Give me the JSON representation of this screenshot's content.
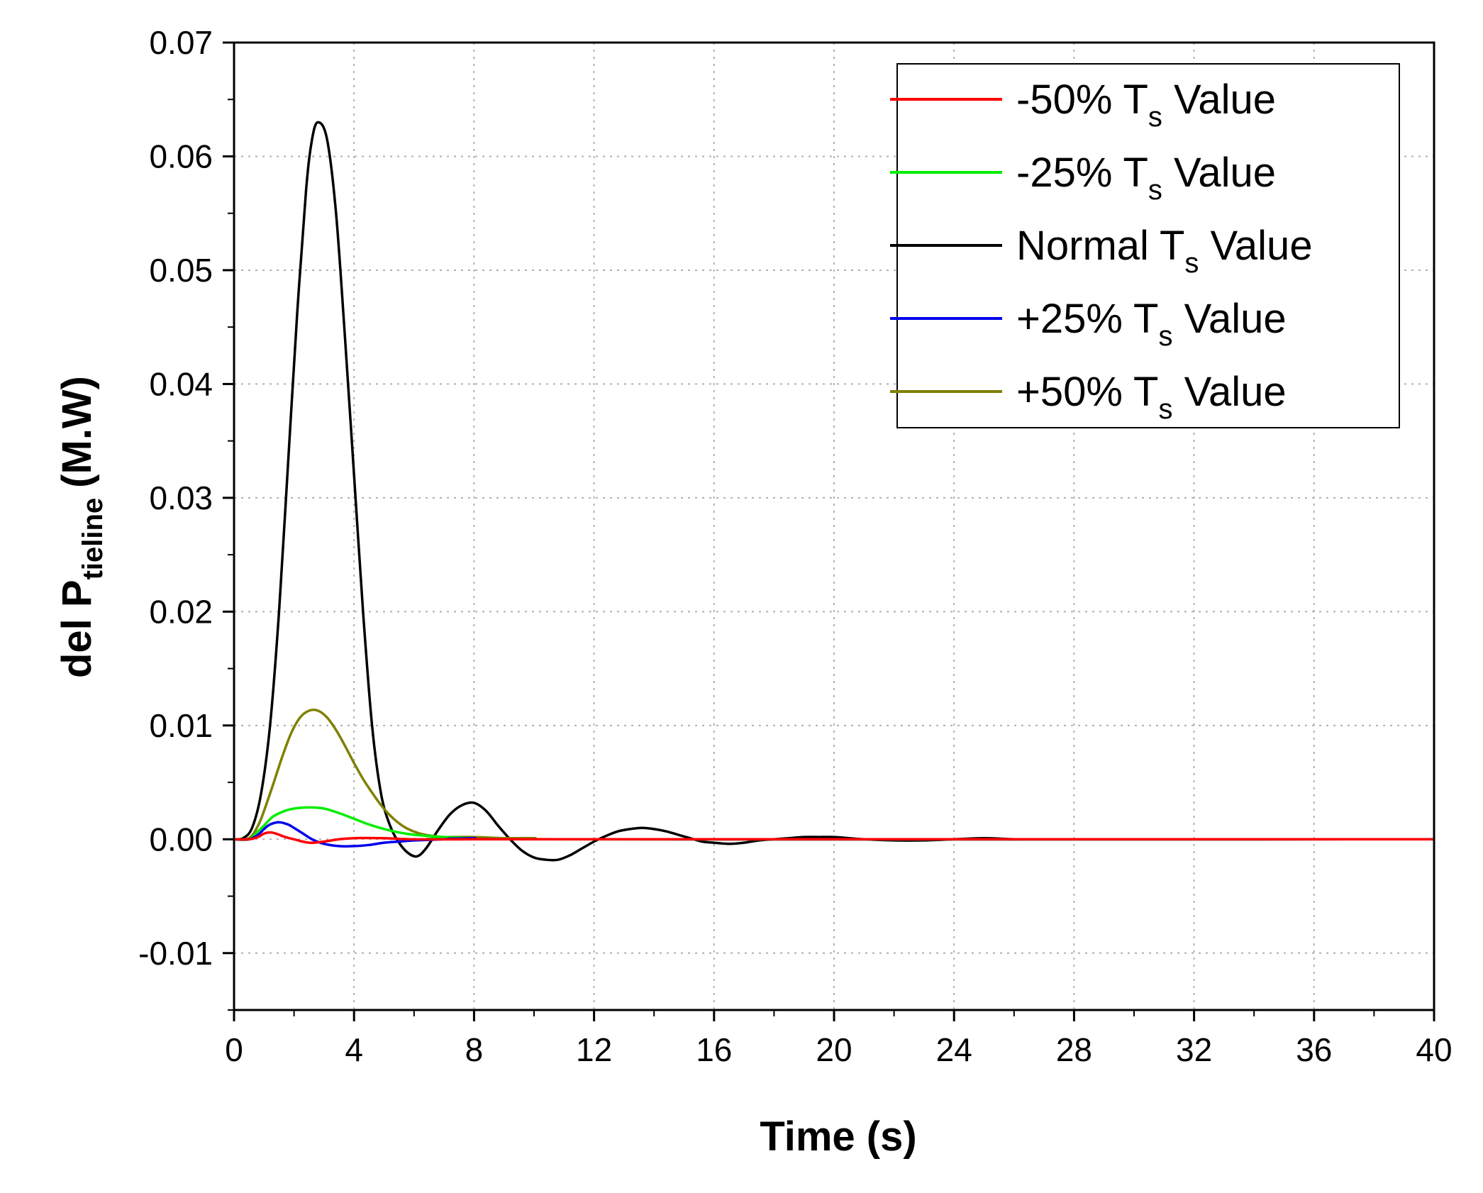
{
  "chart_data": {
    "type": "line",
    "title": "",
    "xlabel": "Time (s)",
    "ylabel": {
      "main": "del P",
      "subscript": "tieline",
      "unit": "(M.W)"
    },
    "xlim": [
      0,
      40
    ],
    "ylim": [
      -0.015,
      0.07
    ],
    "x_ticks": [
      "0",
      "4",
      "8",
      "12",
      "16",
      "20",
      "24",
      "28",
      "32",
      "36",
      "40"
    ],
    "y_ticks": [
      "-0.01",
      "0.00",
      "0.01",
      "0.02",
      "0.03",
      "0.04",
      "0.05",
      "0.06",
      "0.07"
    ],
    "grid": true,
    "legend_position": "top-right",
    "series": [
      {
        "name": "-50% Ts Value",
        "legend": {
          "pre": "-50% T",
          "sub": "s",
          "post": " Value"
        },
        "color": "#ff0000",
        "x": [
          0,
          0.5,
          0.8,
          1.0,
          1.2,
          1.4,
          1.7,
          2.0,
          2.5,
          3.0,
          3.5,
          4.0,
          5.0,
          6.0,
          8.0,
          10.0,
          40.0
        ],
        "y": [
          0,
          0,
          0.0002,
          0.0005,
          0.0006,
          0.0005,
          0.0002,
          0,
          -0.0003,
          -0.0002,
          0,
          0.0001,
          0.0001,
          0,
          0,
          0,
          0
        ]
      },
      {
        "name": "-25% Ts Value",
        "legend": {
          "pre": "-25% T",
          "sub": "s",
          "post": " Value"
        },
        "color": "#00ee00",
        "x": [
          0,
          0.5,
          0.8,
          1.0,
          1.3,
          1.7,
          2.0,
          2.5,
          3.0,
          3.5,
          4.0,
          4.5,
          5.0,
          5.5,
          6.0,
          7.0,
          8.0,
          9.0,
          40.0
        ],
        "y": [
          0,
          0,
          0.0007,
          0.0012,
          0.002,
          0.0025,
          0.0027,
          0.0028,
          0.0027,
          0.0023,
          0.0018,
          0.0013,
          0.0009,
          0.0006,
          0.0004,
          0.0002,
          0.0001,
          0,
          0
        ]
      },
      {
        "name": "Normal Ts Value",
        "legend": {
          "pre": "Normal  T",
          "sub": "s",
          "post": " Value"
        },
        "color": "#000000",
        "x": [
          0,
          0.3,
          0.6,
          0.9,
          1.2,
          1.5,
          1.8,
          2.1,
          2.4,
          2.6,
          2.8,
          3.1,
          3.4,
          3.7,
          4.0,
          4.3,
          4.6,
          4.9,
          5.2,
          5.5,
          5.8,
          6.1,
          6.4,
          6.8,
          7.2,
          7.6,
          8.0,
          8.4,
          8.8,
          9.2,
          9.6,
          10.0,
          10.4,
          10.8,
          11.2,
          11.6,
          12.0,
          12.4,
          12.8,
          13.2,
          13.6,
          14.0,
          14.4,
          14.8,
          15.2,
          15.6,
          16.0,
          16.5,
          17.0,
          17.5,
          18.0,
          18.5,
          19.0,
          19.5,
          20.0,
          20.5,
          21.0,
          22.0,
          23.0,
          24.0,
          25.0,
          26.0,
          27.0,
          40.0
        ],
        "y": [
          0,
          0.0001,
          0.001,
          0.004,
          0.01,
          0.02,
          0.033,
          0.046,
          0.057,
          0.0615,
          0.063,
          0.0615,
          0.055,
          0.044,
          0.032,
          0.02,
          0.01,
          0.004,
          0.0012,
          -0.0003,
          -0.0012,
          -0.0015,
          -0.0008,
          0.0008,
          0.0022,
          0.003,
          0.0032,
          0.0025,
          0.0012,
          0,
          -0.001,
          -0.0016,
          -0.0018,
          -0.0018,
          -0.0014,
          -0.0008,
          -0.0002,
          0.0003,
          0.0007,
          0.0009,
          0.001,
          0.0009,
          0.0007,
          0.0004,
          0.0001,
          -0.0002,
          -0.0003,
          -0.0004,
          -0.0003,
          -0.0001,
          0,
          0.0001,
          0.0002,
          0.0002,
          0.0002,
          0.0001,
          0,
          -0.0001,
          -0.0001,
          0,
          0.0001,
          0,
          0,
          0
        ]
      },
      {
        "name": "+25% Ts Value",
        "legend": {
          "pre": "+25% T",
          "sub": "s",
          "post": " Value"
        },
        "color": "#0000ee",
        "x": [
          0,
          0.5,
          0.8,
          1.0,
          1.2,
          1.5,
          1.8,
          2.0,
          2.3,
          2.6,
          3.0,
          3.5,
          4.0,
          4.5,
          5.0,
          5.5,
          6.0,
          7.0,
          8.0,
          10.0,
          40.0
        ],
        "y": [
          0,
          0,
          0.0004,
          0.0009,
          0.0013,
          0.0015,
          0.0013,
          0.001,
          0.0005,
          0,
          -0.0004,
          -0.0006,
          -0.0006,
          -0.0005,
          -0.0003,
          -0.0002,
          -0.0001,
          0,
          0.0001,
          0,
          0
        ]
      },
      {
        "name": "+50% Ts Value",
        "legend": {
          "pre": "+50% T",
          "sub": "s",
          "post": " Value"
        },
        "color": "#808000",
        "x": [
          0,
          0.5,
          0.8,
          1.0,
          1.3,
          1.6,
          1.9,
          2.2,
          2.5,
          2.8,
          3.1,
          3.4,
          3.7,
          4.0,
          4.3,
          4.6,
          4.9,
          5.2,
          5.5,
          5.8,
          6.2,
          6.6,
          7.0,
          7.5,
          8.0,
          9.0,
          10.0,
          12.0,
          40.0
        ],
        "y": [
          0,
          0.0001,
          0.0012,
          0.0025,
          0.0048,
          0.0072,
          0.0093,
          0.0107,
          0.0113,
          0.0113,
          0.0107,
          0.0096,
          0.0082,
          0.0067,
          0.0053,
          0.0041,
          0.003,
          0.0021,
          0.0014,
          0.0009,
          0.0005,
          0.0003,
          0.0002,
          0.0002,
          0.0002,
          0.0001,
          0.0001,
          0,
          0
        ]
      }
    ]
  }
}
